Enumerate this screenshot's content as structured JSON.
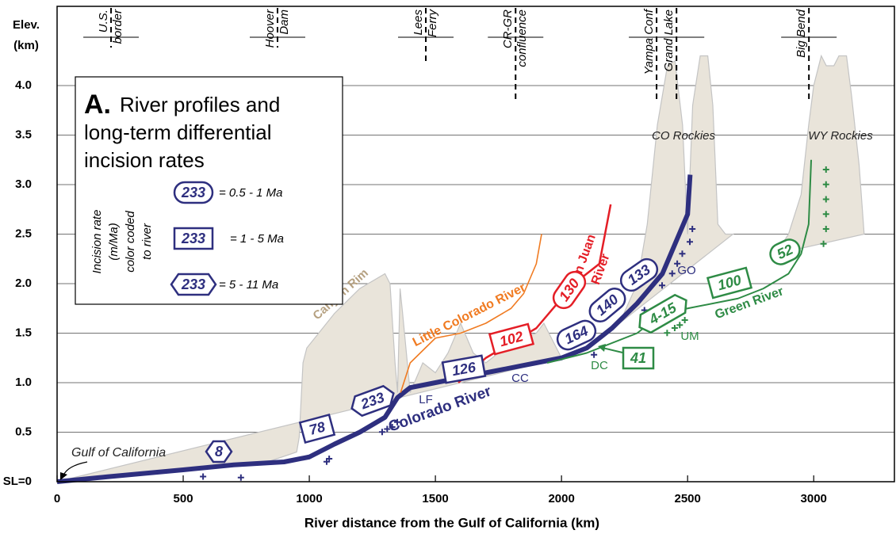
{
  "chart_data": {
    "type": "line",
    "y_label_lines": [
      "Elev.",
      "(km)"
    ],
    "x_label": "River distance from the Gulf of California (km)",
    "xlim": [
      0,
      3320
    ],
    "ylim": [
      0,
      4.8
    ],
    "xticks": [
      0,
      500,
      1000,
      1500,
      2000,
      2500,
      3000
    ],
    "yticks": [
      {
        "value": 0,
        "label": "SL=0"
      },
      0.5,
      {
        "value": 1,
        "label": "1.0"
      },
      1.5,
      {
        "value": 2,
        "label": "2.0"
      },
      2.5,
      {
        "value": 3,
        "label": "3.0"
      },
      3.5,
      {
        "value": 4,
        "label": "4.0"
      }
    ],
    "grid": true,
    "series": [
      {
        "label_lines": [
          "Colorado River"
        ],
        "color": "#2e2f7f",
        "x": [
          0,
          200,
          500,
          700,
          900,
          1000,
          1100,
          1200,
          1300,
          1350,
          1400,
          1500,
          1700,
          1900,
          2000,
          2100,
          2200,
          2300,
          2400,
          2450,
          2500,
          2510
        ],
        "values": [
          0,
          0.05,
          0.12,
          0.17,
          0.2,
          0.25,
          0.38,
          0.5,
          0.65,
          0.85,
          0.95,
          1.0,
          1.1,
          1.2,
          1.25,
          1.35,
          1.55,
          1.8,
          2.1,
          2.4,
          2.7,
          3.1
        ]
      },
      {
        "label_lines": [
          "Little Colorado River"
        ],
        "color": "#f07b22",
        "x": [
          1362,
          1400,
          1500,
          1600,
          1700,
          1800,
          1850,
          1900,
          1921
        ],
        "values": [
          0.9,
          1.2,
          1.45,
          1.5,
          1.6,
          1.75,
          1.9,
          2.2,
          2.5
        ]
      },
      {
        "label_lines": [
          "San Juan",
          "River"
        ],
        "color": "#e41e26",
        "x": [
          1591,
          1700,
          1900,
          2000,
          2050,
          2150,
          2180,
          2195
        ],
        "values": [
          1.0,
          1.25,
          1.55,
          1.85,
          2.0,
          2.2,
          2.6,
          2.8
        ]
      },
      {
        "label_lines": [
          "Green River"
        ],
        "color": "#2e8b45",
        "x": [
          1943,
          2100,
          2300,
          2400,
          2500,
          2700,
          2800,
          2900,
          2950,
          2980,
          2990
        ],
        "values": [
          1.2,
          1.3,
          1.5,
          1.7,
          1.75,
          1.85,
          1.95,
          2.1,
          2.3,
          2.6,
          3.25
        ]
      }
    ],
    "topography": [
      {
        "label": "Canyon Rim",
        "x": [
          0,
          500,
          800,
          950,
          960,
          975,
          990,
          1100,
          1200,
          1300,
          1320,
          1340,
          1350,
          1360,
          1370,
          1400,
          1450,
          1500,
          1550,
          1600,
          1650,
          1700,
          1800,
          1900,
          1930,
          1960,
          2000
        ],
        "y": [
          0,
          0.13,
          0.17,
          0.3,
          0.45,
          1.2,
          1.35,
          1.7,
          1.95,
          2.1,
          2.0,
          1.2,
          0.9,
          1.95,
          1.7,
          0.9,
          1.2,
          1.1,
          1.3,
          1.6,
          1.3,
          1.2,
          1.4,
          1.5,
          1.6,
          1.45,
          1.25
        ]
      },
      {
        "label": "CO Rockies",
        "x": [
          2230,
          2300,
          2340,
          2380,
          2420,
          2450,
          2480,
          2500,
          2520,
          2550,
          2580,
          2600,
          2620,
          2650,
          2680
        ],
        "y": [
          1.6,
          2.0,
          2.6,
          3.6,
          4.2,
          4.25,
          3.6,
          2.5,
          3.8,
          4.3,
          4.3,
          3.8,
          2.6,
          2.5,
          2.5
        ]
      },
      {
        "label": "WY Rockies",
        "x": [
          2850,
          2900,
          2950,
          2980,
          3000,
          3030,
          3050,
          3080,
          3100,
          3130,
          3150,
          3180,
          3200
        ],
        "y": [
          2.3,
          2.5,
          2.9,
          3.6,
          4.0,
          4.3,
          4.2,
          4.2,
          4.3,
          4.3,
          3.9,
          3.2,
          2.5
        ]
      }
    ],
    "samples": [
      {
        "color": "#2e2f7f",
        "x": [
          560,
          710,
          1050,
          1060,
          1270,
          1290,
          1310,
          1330,
          2110,
          2310,
          2380,
          2420,
          2440,
          2460,
          2490,
          2500
        ],
        "y": [
          0.1,
          0.09,
          0.25,
          0.28,
          0.55,
          0.58,
          0.6,
          0.65,
          1.33,
          1.78,
          2.03,
          2.15,
          2.25,
          2.35,
          2.47,
          2.6
        ]
      },
      {
        "color": "#2e8b45",
        "x": [
          2400,
          2430,
          2450,
          2470,
          3020,
          3030,
          3030,
          3030,
          3030,
          3030
        ],
        "y": [
          1.55,
          1.6,
          1.63,
          1.68,
          2.45,
          2.6,
          2.75,
          2.9,
          3.05,
          3.2
        ]
      }
    ],
    "landmarks": [
      {
        "lines": [
          "U.S.",
          "border"
        ],
        "x": 214
      },
      {
        "lines": [
          "Hoover",
          "Dam"
        ],
        "x": 874
      },
      {
        "lines": [
          "Lees",
          "Ferry"
        ],
        "x": 1462
      },
      {
        "lines": [
          "CR-GR",
          "confluence"
        ],
        "x": 1818
      },
      {
        "lines": [
          "Yampa Conf"
        ],
        "x": 2377
      },
      {
        "lines": [
          "Grand Lake"
        ],
        "x": 2456
      },
      {
        "lines": [
          "Big Bend"
        ],
        "x": 2981
      }
    ],
    "rate_labels": [
      {
        "text": "8",
        "shape": "hexagon",
        "color": "#2e2f7f"
      },
      {
        "text": "78",
        "shape": "rect",
        "color": "#2e2f7f"
      },
      {
        "text": "233",
        "shape": "hexagon",
        "color": "#2e2f7f"
      },
      {
        "text": "126",
        "shape": "rect",
        "color": "#2e2f7f"
      },
      {
        "text": "102",
        "shape": "rect",
        "color": "#e41e26"
      },
      {
        "text": "130",
        "shape": "rounded",
        "color": "#e41e26"
      },
      {
        "text": "164",
        "shape": "rounded",
        "color": "#2e2f7f"
      },
      {
        "text": "140",
        "shape": "rounded",
        "color": "#2e2f7f"
      },
      {
        "text": "133",
        "shape": "rounded",
        "color": "#2e2f7f"
      },
      {
        "text": "4-15",
        "shape": "hexagon",
        "color": "#2e8b45"
      },
      {
        "text": "100",
        "shape": "rect",
        "color": "#2e8b45"
      },
      {
        "text": "52",
        "shape": "rounded",
        "color": "#2e8b45"
      },
      {
        "text": "41",
        "shape": "rect",
        "color": "#2e8b45"
      }
    ],
    "point_labels": [
      {
        "text": "Gulf of California",
        "color": "#222"
      },
      {
        "text": "LF",
        "color": "#2e2f7f"
      },
      {
        "text": "CC",
        "color": "#2e2f7f"
      },
      {
        "text": "DC",
        "color": "#2e8b45"
      },
      {
        "text": "UM",
        "color": "#2e8b45"
      },
      {
        "text": "GO",
        "color": "#2e2f7f"
      }
    ],
    "legend": {
      "panel": "A.",
      "title_lines": [
        "River profiles and",
        "long-term differential",
        "incision rates"
      ],
      "side_lines": [
        "Incision rate",
        "(m/Ma)",
        "color coded",
        "to river"
      ],
      "color": "#2e2f7f",
      "items": [
        {
          "text": "233",
          "shape": "rounded",
          "label": "= 0.5 - 1 Ma"
        },
        {
          "text": "233",
          "shape": "rect",
          "label": "= 1 - 5 Ma"
        },
        {
          "text": "233",
          "shape": "hexagon",
          "label": "= 5 - 11 Ma"
        }
      ]
    }
  }
}
